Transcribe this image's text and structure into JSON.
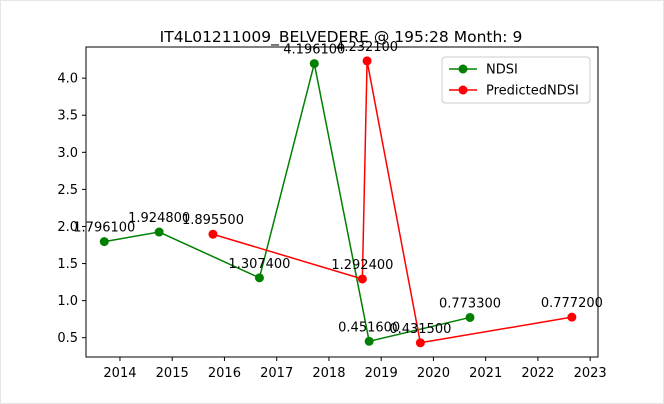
{
  "chart_data": {
    "type": "line",
    "title": "IT4L01211009_BELVEDERE @ 195:28 Month: 9",
    "xlabel": "",
    "ylabel": "",
    "xlim": [
      2013.35,
      2023.15
    ],
    "ylim": [
      0.24,
      4.42
    ],
    "x_ticks": [
      2014,
      2015,
      2016,
      2017,
      2018,
      2019,
      2020,
      2021,
      2022,
      2023
    ],
    "x_tick_labels": [
      "2014",
      "2015",
      "2016",
      "2017",
      "2018",
      "2019",
      "2020",
      "2021",
      "2022",
      "2023"
    ],
    "y_ticks": [
      0.5,
      1.0,
      1.5,
      2.0,
      2.5,
      3.0,
      3.5,
      4.0
    ],
    "y_tick_labels": [
      "0.5",
      "1.0",
      "1.5",
      "2.0",
      "2.5",
      "3.0",
      "3.5",
      "4.0"
    ],
    "grid": false,
    "legend_position": "top-right",
    "series": [
      {
        "name": "NDSI",
        "color": "#008000",
        "marker": "circle",
        "x": [
          "2013-09",
          "2014-10",
          "2016-09",
          "2017-09",
          "2018-09",
          "2020-09"
        ],
        "x_numeric": [
          2013.7,
          2014.75,
          2016.67,
          2017.72,
          2018.77,
          2020.7
        ],
        "values": [
          1.7961,
          1.9248,
          1.3074,
          4.1961,
          0.4516,
          0.7733
        ],
        "labels": [
          "1.796100",
          "1.924800",
          "1.307400",
          "4.196100",
          "0.451600",
          "0.773300"
        ]
      },
      {
        "name": "PredictedNDSI",
        "color": "#ff0000",
        "marker": "circle",
        "x": [
          "2015-10",
          "2018-08",
          "2018-09",
          "2019-09",
          "2022-08"
        ],
        "x_numeric": [
          2015.78,
          2018.64,
          2018.73,
          2019.75,
          2022.65
        ],
        "values": [
          1.8955,
          1.2924,
          4.2321,
          0.4315,
          0.7772
        ],
        "labels": [
          "1.895500",
          "1.292400",
          "4.232100",
          "0.431500",
          "0.777200"
        ]
      }
    ]
  }
}
